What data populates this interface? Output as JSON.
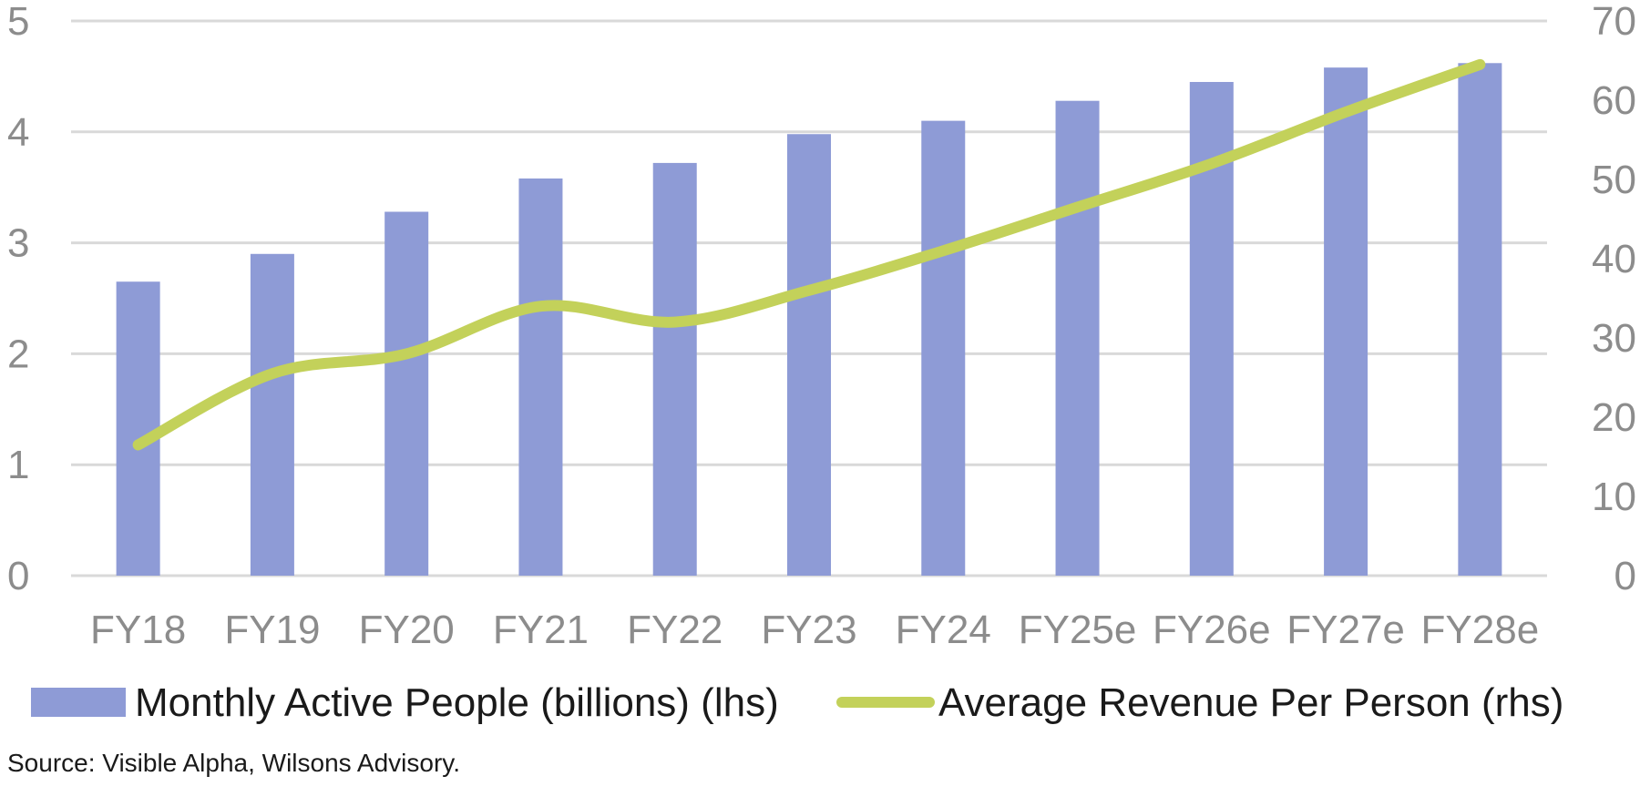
{
  "chart_data": {
    "type": "bar",
    "categories": [
      "FY18",
      "FY19",
      "FY20",
      "FY21",
      "FY22",
      "FY23",
      "FY24",
      "FY25e",
      "FY26e",
      "FY27e",
      "FY28e"
    ],
    "series": [
      {
        "name": "Monthly Active People (billions) (lhs)",
        "type": "bar",
        "axis": "left",
        "color": "#8e9bd6",
        "values": [
          2.65,
          2.9,
          3.28,
          3.58,
          3.72,
          3.98,
          4.1,
          4.28,
          4.45,
          4.58,
          4.62
        ]
      },
      {
        "name": "Average Revenue Per Person (rhs)",
        "type": "line",
        "axis": "right",
        "color": "#c3d15a",
        "values": [
          16.5,
          25.5,
          28,
          34,
          32,
          36,
          41,
          46.5,
          52,
          58.5,
          64.5
        ]
      }
    ],
    "ylim_left": [
      0,
      5
    ],
    "ylim_right": [
      0,
      70
    ],
    "left_ticks": [
      "0",
      "1",
      "2",
      "3",
      "4",
      "5"
    ],
    "right_ticks": [
      "0",
      "10",
      "20",
      "30",
      "40",
      "50",
      "60",
      "70"
    ],
    "grid": true,
    "legend_position": "bottom"
  },
  "source": "Source: Visible Alpha, Wilsons Advisory."
}
